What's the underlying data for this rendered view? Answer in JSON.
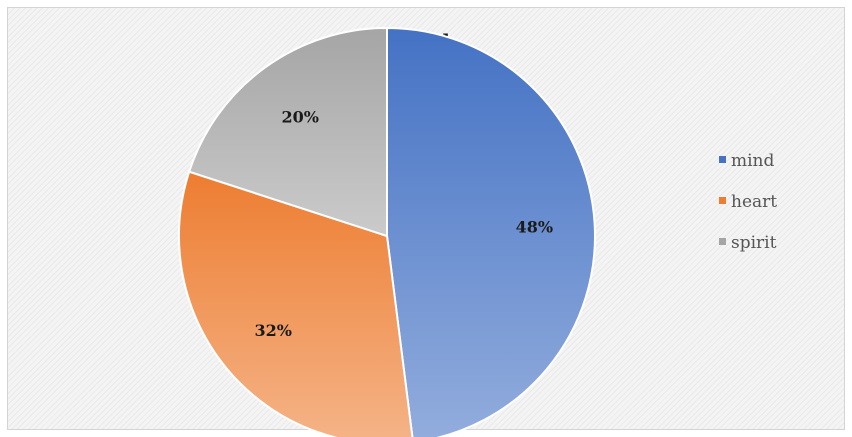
{
  "chart_data": {
    "type": "pie",
    "title": "Soul",
    "categories": [
      "mind",
      "heart",
      "spirit"
    ],
    "values": [
      48,
      32,
      20
    ],
    "data_labels": [
      "48%",
      "32%",
      "20%"
    ],
    "colors": [
      "#4472C4",
      "#ED7D31",
      "#A5A5A5"
    ],
    "legend_position": "right",
    "start_angle": "12 o'clock, clockwise"
  }
}
